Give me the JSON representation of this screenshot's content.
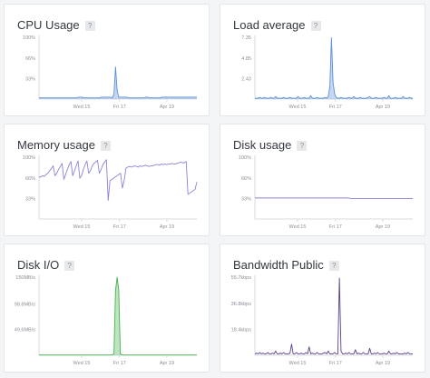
{
  "colors": {
    "cpu": "#5b8fd8",
    "load": "#5b8fd8",
    "memory": "#8b84d8",
    "disk": "#8b84d8",
    "diskio": "#45b34f",
    "bandwidth": "#5a3f8e",
    "gridline": "#d8dbde",
    "axis_text": "#8a8f95"
  },
  "help_label": "?",
  "chart_data": [
    {
      "id": "cpu",
      "title": "CPU Usage",
      "type": "area",
      "yticks": [
        "100%",
        "66%",
        "33%"
      ],
      "ytick_values": [
        100,
        66,
        33
      ],
      "ylim": [
        0,
        100
      ],
      "xticks": [
        "Wed 15",
        "Fri 17",
        "Apr 19"
      ],
      "series": [
        {
          "values": [
            2,
            2,
            2,
            2,
            2,
            2,
            2,
            2,
            2,
            2,
            2,
            2,
            2,
            2,
            2,
            2,
            2,
            2,
            2,
            2,
            2,
            2,
            2,
            2,
            2,
            3,
            3,
            3,
            2,
            2,
            2,
            2,
            2,
            2,
            2,
            2,
            2,
            2,
            2,
            3,
            3,
            3,
            3,
            3,
            3,
            3,
            2,
            8,
            52,
            14,
            3,
            3,
            3,
            3,
            3,
            3,
            2,
            2,
            2,
            2,
            2,
            2,
            2,
            2,
            2,
            2,
            2,
            3,
            3,
            2,
            2,
            2,
            2,
            2,
            2,
            2,
            2,
            3,
            3,
            3,
            3,
            3,
            3,
            3,
            3,
            3,
            3,
            3,
            3,
            3,
            3,
            3,
            3,
            3,
            3,
            3,
            3,
            3,
            3,
            3
          ]
        }
      ]
    },
    {
      "id": "load",
      "title": "Load average",
      "type": "area",
      "yticks": [
        "7.35",
        "4.85",
        "2.43"
      ],
      "ytick_values": [
        7.35,
        4.85,
        2.43
      ],
      "ylim": [
        0,
        7.35
      ],
      "xticks": [
        "Wed 15",
        "Fri 17",
        "Apr 19"
      ],
      "series": [
        {
          "values": [
            0.1,
            0.1,
            0.1,
            0.2,
            0.1,
            0.1,
            0.2,
            0.1,
            0.1,
            0.1,
            0.2,
            0.1,
            0.1,
            0.3,
            0.1,
            0.1,
            0.1,
            0.1,
            0.2,
            0.1,
            0.1,
            0.1,
            0.2,
            0.1,
            0.1,
            0.1,
            0.1,
            0.3,
            0.1,
            0.1,
            0.1,
            0.2,
            0.1,
            0.1,
            0.1,
            0.4,
            0.1,
            0.1,
            0.1,
            0.2,
            0.1,
            0.1,
            0.1,
            0.1,
            0.2,
            0.1,
            0.3,
            1.5,
            7.3,
            2.0,
            0.6,
            0.2,
            0.1,
            0.1,
            0.2,
            0.1,
            0.1,
            0.1,
            0.1,
            0.2,
            0.1,
            0.1,
            0.3,
            0.1,
            0.1,
            0.1,
            0.2,
            0.1,
            0.1,
            0.1,
            0.1,
            0.2,
            0.3,
            0.1,
            0.1,
            0.1,
            0.2,
            0.1,
            0.1,
            0.1,
            0.1,
            0.2,
            0.1,
            0.1,
            0.4,
            0.1,
            0.1,
            0.1,
            0.2,
            0.1,
            0.1,
            0.1,
            0.1,
            0.3,
            0.1,
            0.1,
            0.1,
            0.2,
            0.1,
            0.1
          ]
        }
      ]
    },
    {
      "id": "memory",
      "title": "Memory usage",
      "type": "line",
      "yticks": [
        "100%",
        "66%",
        "33%"
      ],
      "ytick_values": [
        100,
        66,
        33
      ],
      "ylim": [
        0,
        100
      ],
      "xticks": [
        "Wed 15",
        "Fri 17",
        "Apr 19"
      ],
      "series": [
        {
          "values": [
            68,
            68,
            70,
            69,
            72,
            74,
            78,
            82,
            86,
            70,
            74,
            80,
            85,
            90,
            64,
            72,
            80,
            88,
            93,
            70,
            78,
            86,
            94,
            66,
            70,
            80,
            88,
            94,
            74,
            78,
            86,
            90,
            92,
            95,
            74,
            80,
            88,
            92,
            96,
            30,
            62,
            64,
            66,
            68,
            70,
            72,
            74,
            50,
            62,
            82,
            84,
            85,
            84,
            85,
            86,
            85,
            84,
            86,
            85,
            86,
            87,
            86,
            85,
            86,
            86,
            87,
            88,
            88,
            87,
            89,
            88,
            89,
            88,
            89,
            89,
            90,
            89,
            89,
            90,
            91,
            92,
            91,
            91,
            93,
            40,
            42,
            44,
            46,
            48,
            60
          ]
        }
      ]
    },
    {
      "id": "disk",
      "title": "Disk usage",
      "type": "line",
      "yticks": [
        "100%",
        "66%",
        "33%"
      ],
      "ytick_values": [
        100,
        66,
        33
      ],
      "ylim": [
        0,
        100
      ],
      "xticks": [
        "Wed 15",
        "Fri 17",
        "Apr 19"
      ],
      "series": [
        {
          "values": [
            34,
            34,
            34,
            34,
            34,
            34,
            34,
            34,
            34,
            34,
            34,
            34,
            34,
            34,
            34,
            34,
            34,
            34,
            34,
            34,
            34,
            34,
            34,
            34,
            33,
            33,
            33,
            33,
            33,
            33,
            33,
            33,
            33,
            33,
            33,
            33,
            33,
            33,
            33,
            33
          ]
        }
      ]
    },
    {
      "id": "diskio",
      "title": "Disk I/O",
      "type": "area",
      "yticks": [
        "150MB/s",
        "98.8MB/s",
        "49.6MB/s"
      ],
      "ytick_values": [
        150,
        98.8,
        49.6
      ],
      "ylim": [
        0,
        150
      ],
      "xticks": [
        "Wed 15",
        "Fri 17",
        "Apr 19"
      ],
      "series": [
        {
          "values": [
            0.5,
            0.5,
            0.5,
            0.5,
            0.5,
            0.5,
            0.5,
            0.5,
            0.5,
            0.5,
            0.5,
            0.5,
            0.5,
            0.5,
            0.5,
            0.5,
            0.5,
            0.5,
            0.5,
            0.5,
            0.5,
            0.5,
            0.5,
            0.5,
            0.5,
            0.5,
            0.5,
            0.5,
            0.5,
            0.5,
            0.5,
            0.5,
            0.5,
            0.5,
            0.5,
            0.5,
            0.5,
            0.5,
            0.5,
            0.5,
            0.5,
            0.5,
            0.5,
            0.5,
            0.5,
            0.5,
            1,
            3,
            125,
            150,
            125,
            3,
            1,
            0.5,
            0.5,
            0.5,
            0.5,
            0.5,
            0.5,
            0.5,
            0.5,
            0.5,
            0.5,
            0.5,
            0.5,
            0.5,
            0.5,
            0.5,
            0.5,
            0.5,
            0.5,
            0.5,
            0.5,
            0.5,
            0.5,
            0.5,
            0.5,
            0.5,
            0.5,
            0.5,
            0.5,
            0.5,
            0.5,
            0.5,
            0.5,
            0.5,
            0.5,
            0.5,
            0.5,
            0.5,
            0.5,
            0.5,
            0.5,
            0.5,
            0.5,
            0.5,
            0.5,
            0.5,
            0.5,
            0.5
          ]
        }
      ]
    },
    {
      "id": "bandwidth",
      "title": "Bandwidth Public",
      "type": "line",
      "yticks": [
        "55.7kbps",
        "36.8kbps",
        "18.4kbps"
      ],
      "ytick_values": [
        55.7,
        36.8,
        18.4
      ],
      "ylim": [
        0,
        55.7
      ],
      "xticks": [
        "Wed 15",
        "Fri 17",
        "Apr 19"
      ],
      "series": [
        {
          "values": [
            1,
            1.5,
            1,
            2,
            1,
            1.5,
            1,
            1,
            2,
            1,
            1,
            1.5,
            1,
            3,
            1,
            1,
            1.5,
            1,
            2,
            1,
            1,
            1,
            1.5,
            8,
            1,
            1,
            2,
            1,
            1,
            1.5,
            1,
            1,
            2,
            1,
            6,
            1,
            1.5,
            1,
            1,
            2,
            1,
            1,
            1,
            1.5,
            2,
            1,
            3,
            1,
            1,
            1,
            2,
            1,
            1,
            55,
            3,
            1,
            1,
            1.5,
            1,
            2,
            1,
            1,
            1,
            4,
            1,
            1.5,
            1,
            1,
            2,
            1,
            1,
            1,
            5,
            1,
            1,
            1.5,
            1,
            2,
            1,
            1,
            1,
            1.5,
            1,
            1,
            3,
            1,
            1,
            1.5,
            1,
            2,
            1,
            1,
            1,
            1,
            1.5,
            1,
            2,
            1,
            1,
            1
          ]
        }
      ]
    }
  ]
}
